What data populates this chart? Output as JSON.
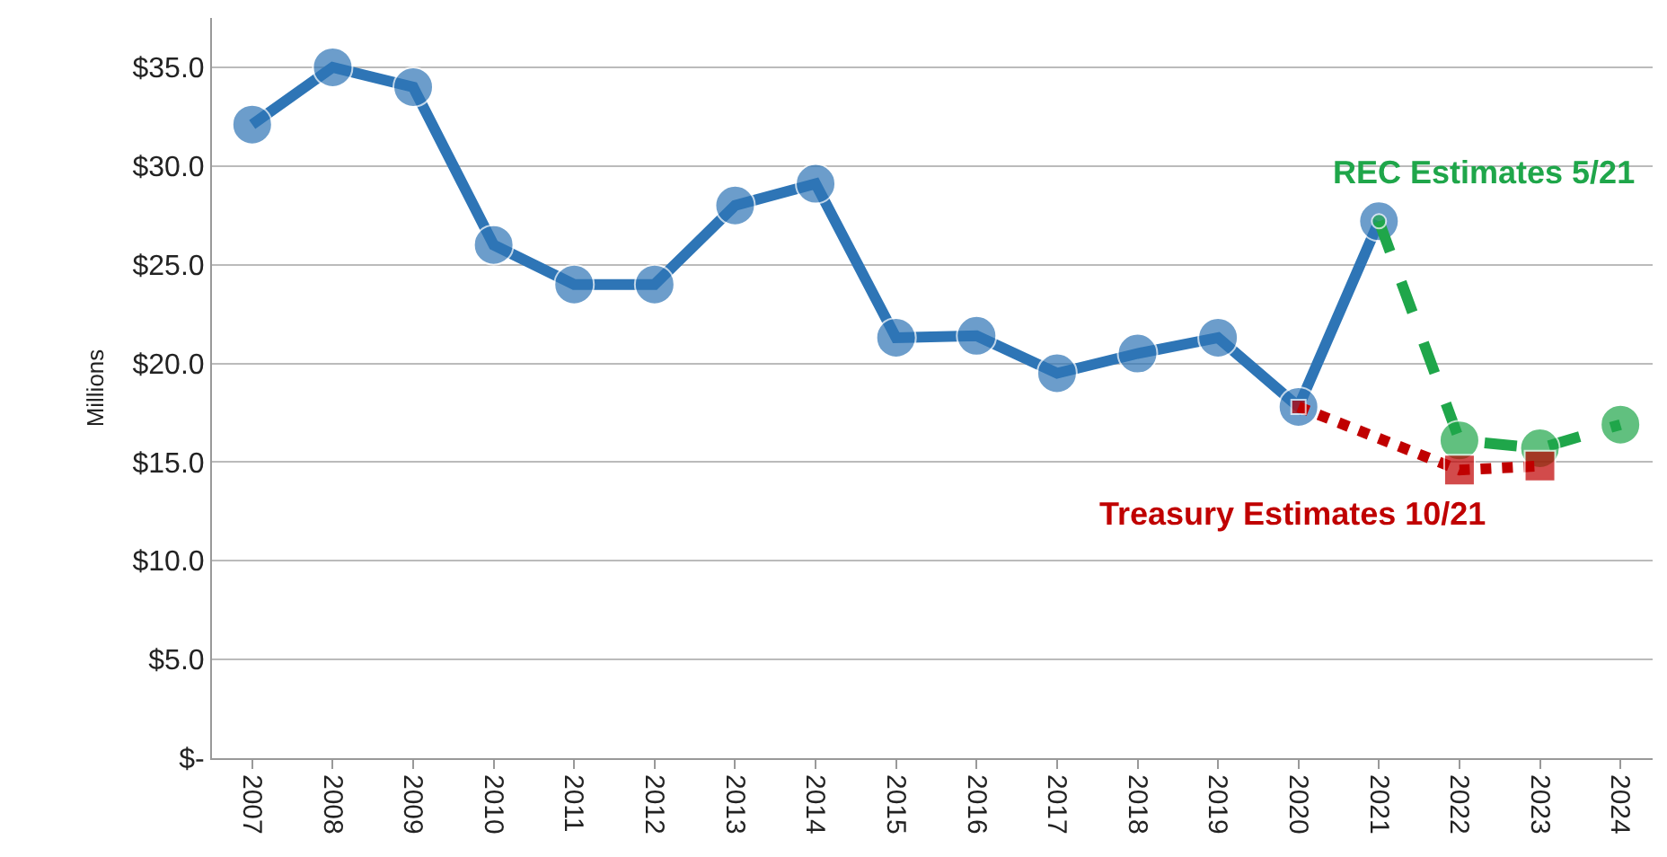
{
  "chart_data": {
    "type": "line",
    "ylabel": "Millions",
    "categories": [
      "2007",
      "2008",
      "2009",
      "2010",
      "2011",
      "2012",
      "2013",
      "2014",
      "2015",
      "2016",
      "2017",
      "2018",
      "2019",
      "2020",
      "2021",
      "2022",
      "2023",
      "2024"
    ],
    "series": [
      {
        "color": "#2e75b6",
        "marker": "circle",
        "line_style": "solid",
        "values": [
          32.1,
          35.0,
          34.0,
          26.0,
          24.0,
          24.0,
          28.0,
          29.1,
          21.3,
          21.4,
          19.5,
          20.5,
          21.3,
          17.8,
          27.2,
          null,
          null,
          null
        ]
      },
      {
        "name": "REC Estimates 5/21",
        "color": "#1fa64a",
        "marker": "circle",
        "line_style": "dashed",
        "values": [
          null,
          null,
          null,
          null,
          null,
          null,
          null,
          null,
          null,
          null,
          null,
          null,
          null,
          null,
          27.2,
          16.1,
          15.7,
          16.9
        ]
      },
      {
        "name": "Treasury Estimates 10/21",
        "color": "#c00000",
        "marker": "square",
        "line_style": "dotted",
        "values": [
          null,
          null,
          null,
          null,
          null,
          null,
          null,
          null,
          null,
          null,
          null,
          null,
          null,
          17.8,
          null,
          14.6,
          14.8,
          null
        ]
      }
    ],
    "ylim": [
      0,
      37.5
    ],
    "yticks": [
      {
        "value": 0,
        "label": "$-"
      },
      {
        "value": 5,
        "label": "$5.0"
      },
      {
        "value": 10,
        "label": "$10.0"
      },
      {
        "value": 15,
        "label": "$15.0"
      },
      {
        "value": 20,
        "label": "$20.0"
      },
      {
        "value": 25,
        "label": "$25.0"
      },
      {
        "value": 30,
        "label": "$30.0"
      },
      {
        "value": 35,
        "label": "$35.0"
      }
    ],
    "grid": "y",
    "legend": false
  }
}
